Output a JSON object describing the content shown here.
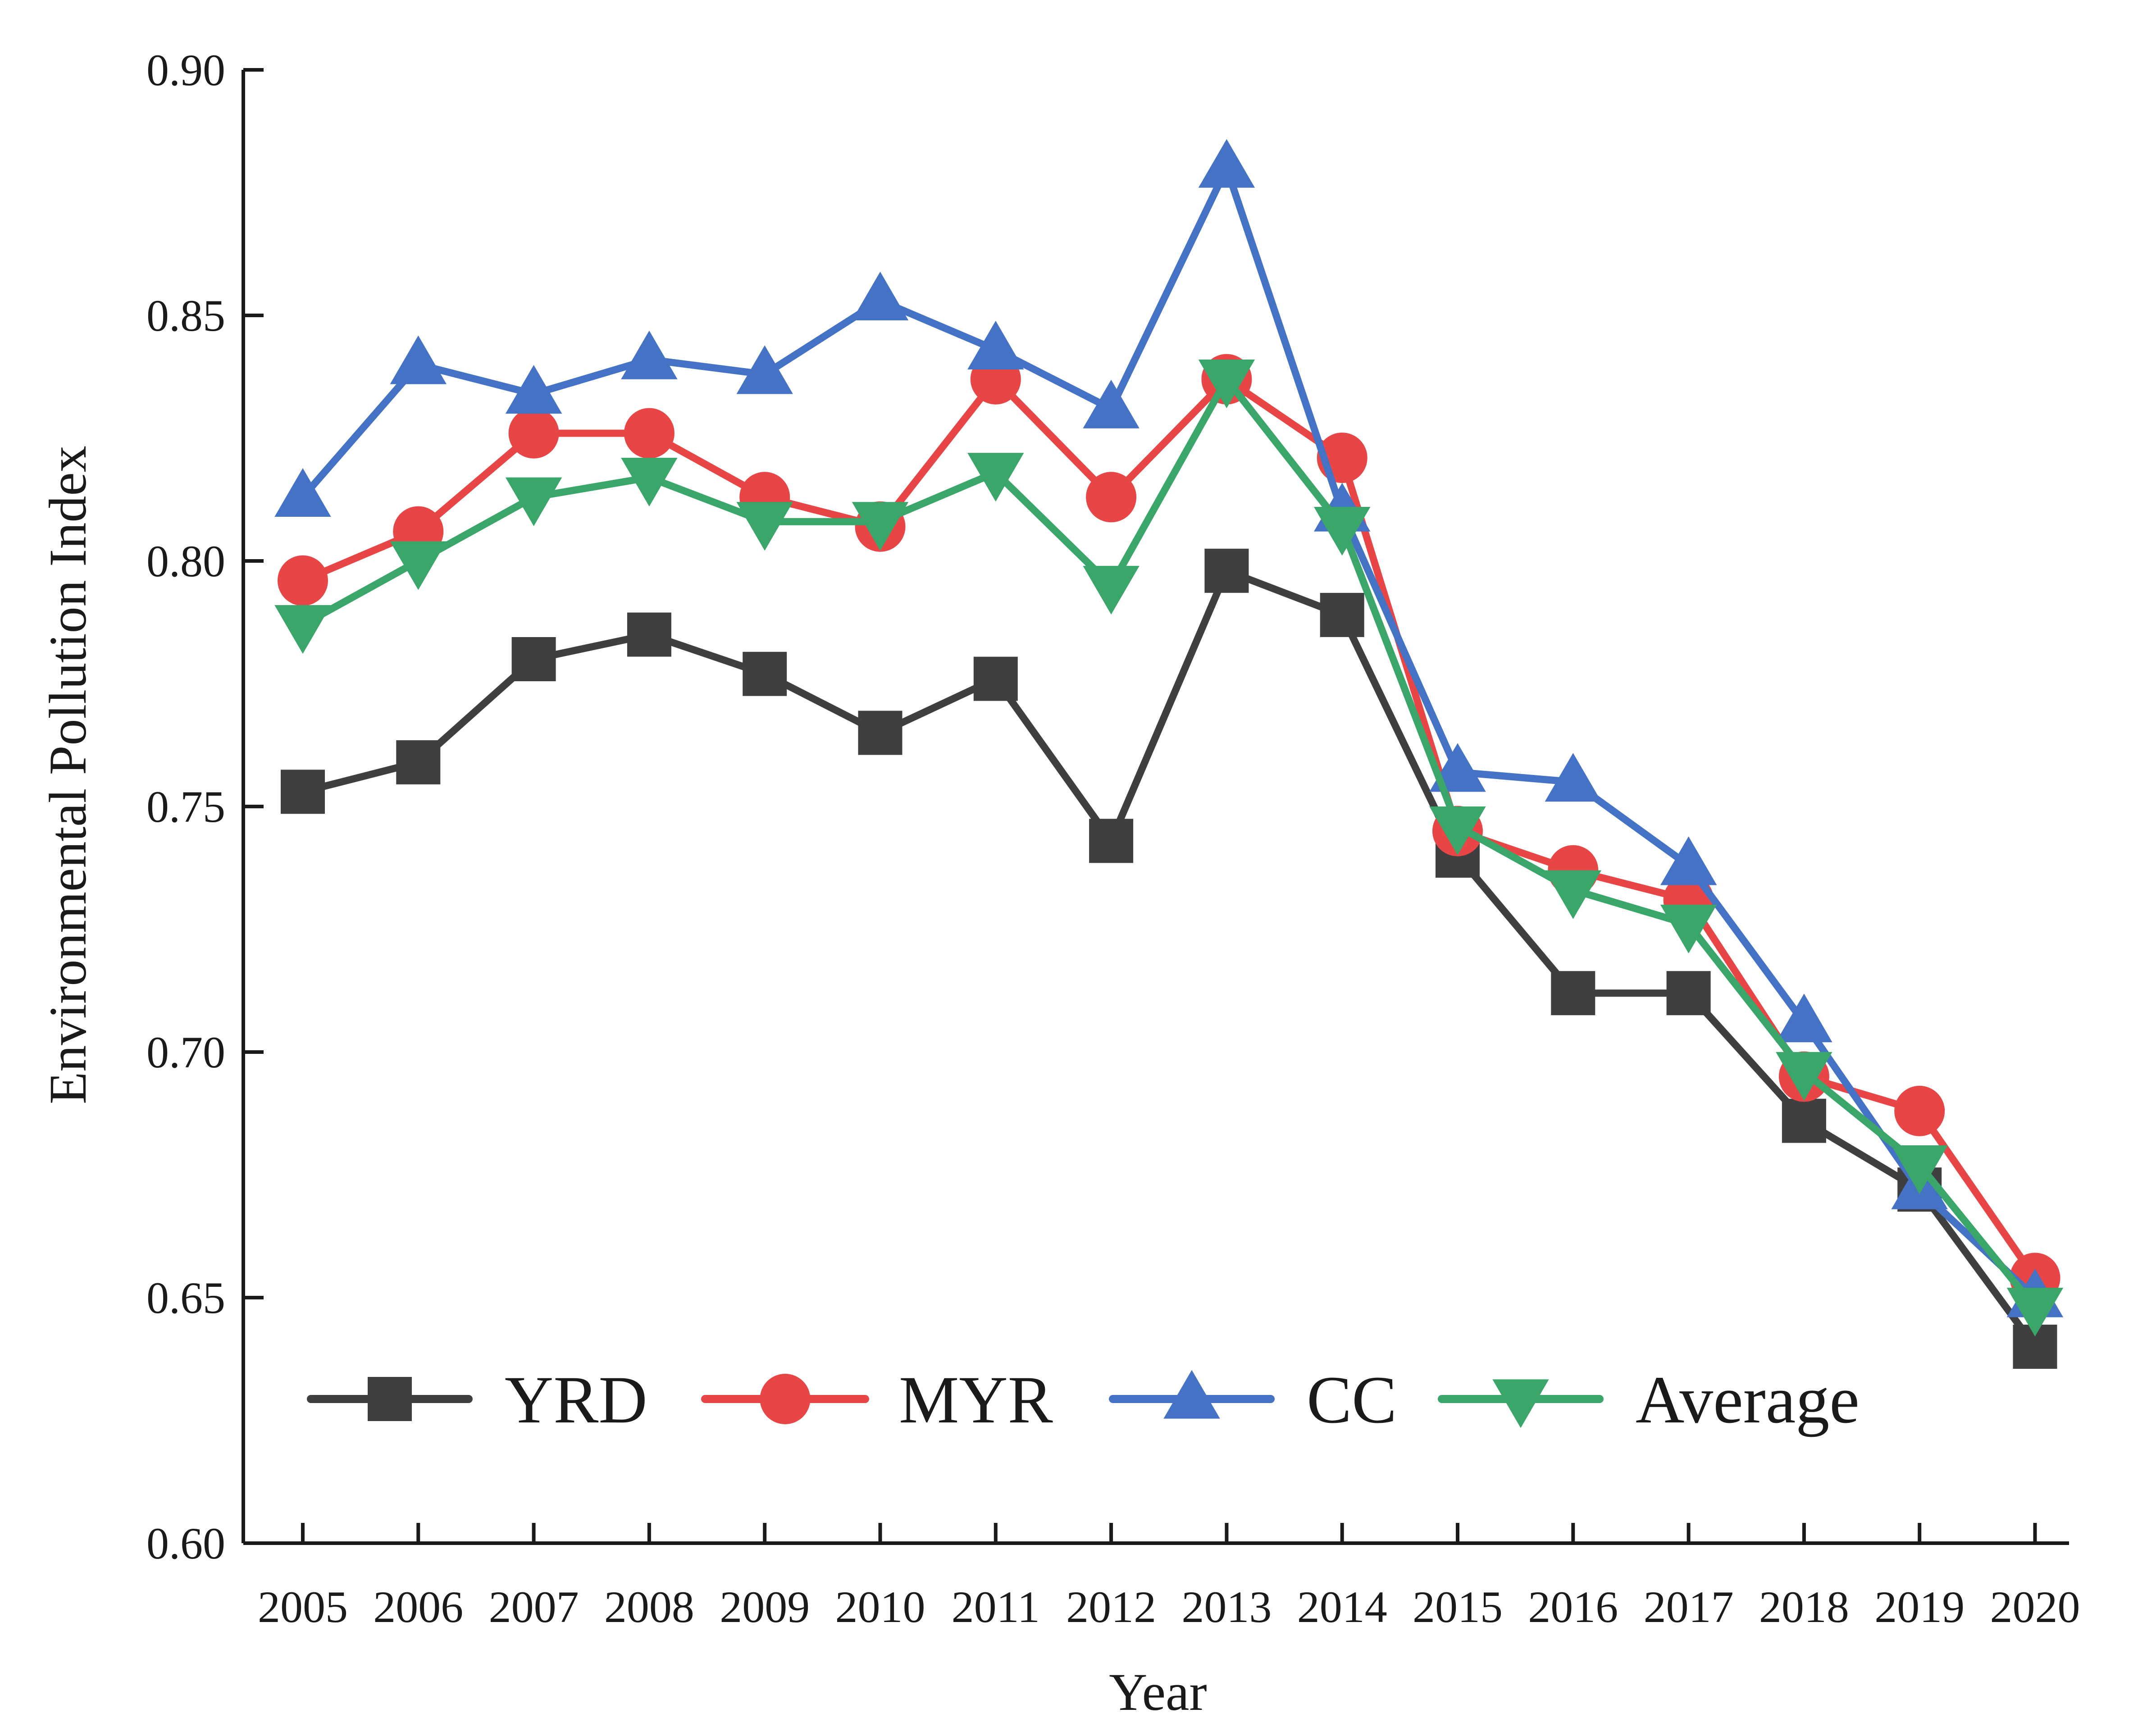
{
  "chart_data": {
    "type": "line",
    "title": "",
    "xlabel": "Year",
    "ylabel": "Environmental Pollution Index",
    "ylim": [
      0.6,
      0.9
    ],
    "yticks": [
      "0.60",
      "0.65",
      "0.70",
      "0.75",
      "0.80",
      "0.85",
      "0.90"
    ],
    "categories": [
      "2005",
      "2006",
      "2007",
      "2008",
      "2009",
      "2010",
      "2011",
      "2012",
      "2013",
      "2014",
      "2015",
      "2016",
      "2017",
      "2018",
      "2019",
      "2020"
    ],
    "grid": false,
    "legend_position": "bottom-left",
    "series": [
      {
        "name": "YRD",
        "color": "#3f3f3f",
        "marker": "square",
        "values": [
          0.753,
          0.759,
          0.78,
          0.785,
          0.777,
          0.765,
          0.776,
          0.743,
          0.798,
          0.789,
          0.74,
          0.712,
          0.712,
          0.686,
          0.672,
          0.64
        ]
      },
      {
        "name": "MYR",
        "color": "#e84646",
        "marker": "circle",
        "values": [
          0.796,
          0.806,
          0.826,
          0.826,
          0.813,
          0.807,
          0.837,
          0.813,
          0.837,
          0.821,
          0.745,
          0.737,
          0.731,
          0.695,
          0.688,
          0.654
        ]
      },
      {
        "name": "CC",
        "color": "#4472c4",
        "marker": "triangle-up",
        "values": [
          0.813,
          0.84,
          0.834,
          0.841,
          0.838,
          0.853,
          0.843,
          0.831,
          0.88,
          0.81,
          0.757,
          0.755,
          0.738,
          0.706,
          0.672,
          0.65
        ]
      },
      {
        "name": "Average",
        "color": "#3aa66a",
        "marker": "triangle-down",
        "values": [
          0.787,
          0.8,
          0.813,
          0.817,
          0.808,
          0.808,
          0.818,
          0.795,
          0.837,
          0.807,
          0.746,
          0.733,
          0.726,
          0.696,
          0.677,
          0.648
        ]
      }
    ]
  }
}
